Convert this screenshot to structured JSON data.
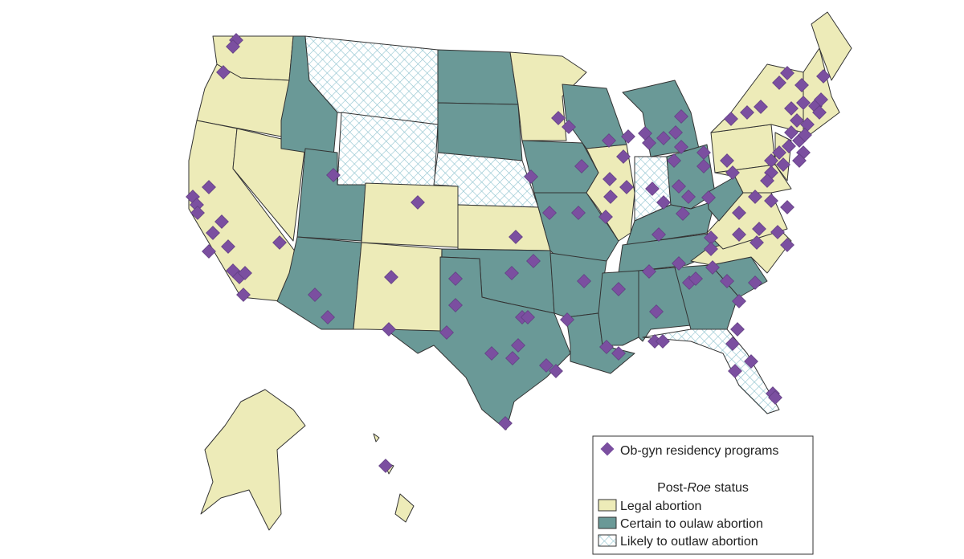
{
  "legend": {
    "marker": {
      "label": "Ob-gyn residency programs",
      "color": "#7b4fa0"
    },
    "status_title": {
      "prefix": "Post-",
      "emphasis": "Roe",
      "suffix": " status"
    },
    "items": [
      {
        "label": "Legal abortion",
        "color": "#edebb8"
      },
      {
        "label": "Certain to oulaw abortion",
        "color": "#6a9997"
      },
      {
        "label": "Likely to outlaw abortion",
        "color": "#dff0f4"
      }
    ]
  }
}
